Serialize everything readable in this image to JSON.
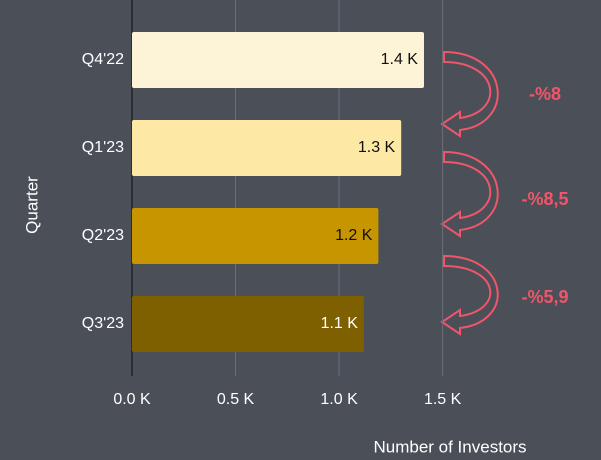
{
  "chart_data": {
    "type": "barh",
    "categories": [
      "Q4'22",
      "Q1'23",
      "Q2'23",
      "Q3'23"
    ],
    "values": [
      1.41,
      1.3,
      1.19,
      1.12
    ],
    "value_labels": [
      "1.4 K",
      "1.3 K",
      "1.2 K",
      "1.1 K"
    ],
    "colors": [
      "#fdf3d6",
      "#fde8a6",
      "#c79500",
      "#7f6000"
    ],
    "xlim": [
      0,
      2.26
    ],
    "xticks": [
      {
        "value": 0,
        "label": "0.0 K"
      },
      {
        "value": 0.5,
        "label": "0.5 K"
      },
      {
        "value": 1,
        "label": "1.0 K"
      },
      {
        "value": 1.5,
        "label": "1.5 K"
      }
    ],
    "grid": true,
    "xlabel": "Number of Investors",
    "ylabel": "Quarter",
    "annotations": [
      "-%8",
      "-%8,5",
      "-%5,9"
    ]
  }
}
